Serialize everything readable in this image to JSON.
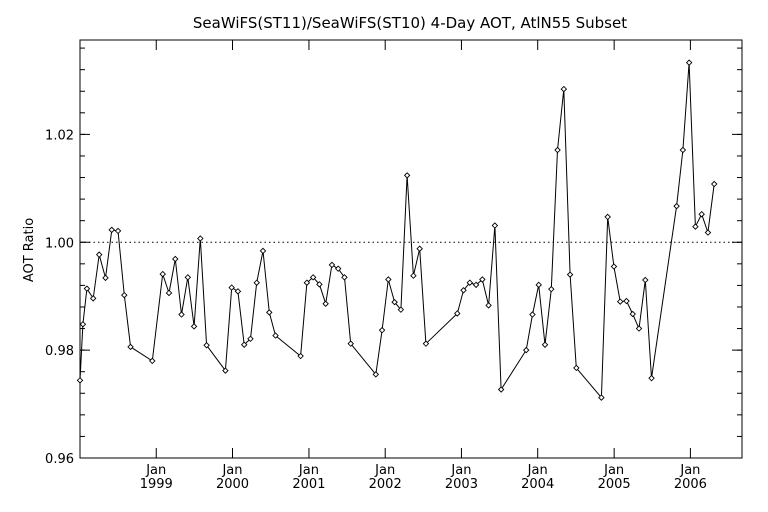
{
  "chart_data": {
    "type": "line",
    "title": "SeaWiFS(ST11)/SeaWiFS(ST10) 4-Day AOT, AtlN55 Subset",
    "ylabel": "AOT Ratio",
    "xlabel": "",
    "xlim": [
      "1998-01-01",
      "2006-09-05"
    ],
    "ylim": [
      0.96,
      1.0375
    ],
    "yticks": [
      0.96,
      0.98,
      1.0,
      1.02
    ],
    "ytick_labels": [
      "0.96",
      "0.98",
      "1.00",
      "1.02"
    ],
    "y_minor_step": 0.004,
    "reference_line": 1.0,
    "x_month_label": "Jan",
    "xticks": [
      {
        "date": "1999-01-01",
        "year": "1999"
      },
      {
        "date": "2000-01-01",
        "year": "2000"
      },
      {
        "date": "2001-01-01",
        "year": "2001"
      },
      {
        "date": "2002-01-01",
        "year": "2002"
      },
      {
        "date": "2003-01-01",
        "year": "2003"
      },
      {
        "date": "2004-01-01",
        "year": "2004"
      },
      {
        "date": "2005-01-01",
        "year": "2005"
      },
      {
        "date": "2006-01-01",
        "year": "2006"
      }
    ],
    "grid": false,
    "marker": "diamond",
    "points": [
      [
        "1998-01-01",
        0.9744
      ],
      [
        "1998-01-15",
        0.9848
      ],
      [
        "1998-02-03",
        0.9914
      ],
      [
        "1998-03-05",
        0.9896
      ],
      [
        "1998-04-03",
        0.9977
      ],
      [
        "1998-05-03",
        0.9934
      ],
      [
        "1998-06-02",
        1.0023
      ],
      [
        "1998-07-02",
        1.0021
      ],
      [
        "1998-08-01",
        0.9902
      ],
      [
        "1998-08-31",
        0.9806
      ],
      [
        "1998-12-13",
        0.978
      ],
      [
        "1999-02-01",
        0.9941
      ],
      [
        "1999-03-03",
        0.9906
      ],
      [
        "1999-04-02",
        0.9969
      ],
      [
        "1999-05-02",
        0.9866
      ],
      [
        "1999-06-01",
        0.9935
      ],
      [
        "1999-07-01",
        0.9844
      ],
      [
        "1999-07-31",
        1.0007
      ],
      [
        "1999-08-30",
        0.9809
      ],
      [
        "1999-11-28",
        0.9762
      ],
      [
        "1999-12-28",
        0.9916
      ],
      [
        "2000-01-27",
        0.9909
      ],
      [
        "2000-02-26",
        0.981
      ],
      [
        "2000-03-27",
        0.9821
      ],
      [
        "2000-04-26",
        0.9925
      ],
      [
        "2000-05-26",
        0.9984
      ],
      [
        "2000-06-25",
        0.987
      ],
      [
        "2000-07-25",
        0.9827
      ],
      [
        "2000-11-22",
        0.9789
      ],
      [
        "2000-12-22",
        0.9925
      ],
      [
        "2001-01-21",
        0.9935
      ],
      [
        "2001-02-20",
        0.9922
      ],
      [
        "2001-03-22",
        0.9886
      ],
      [
        "2001-04-21",
        0.9958
      ],
      [
        "2001-05-21",
        0.9951
      ],
      [
        "2001-06-20",
        0.9935
      ],
      [
        "2001-07-20",
        0.9812
      ],
      [
        "2001-11-17",
        0.9755
      ],
      [
        "2001-12-17",
        0.9837
      ],
      [
        "2002-01-16",
        0.9931
      ],
      [
        "2002-02-15",
        0.9889
      ],
      [
        "2002-03-17",
        0.9875
      ],
      [
        "2002-04-16",
        1.0124
      ],
      [
        "2002-05-16",
        0.9938
      ],
      [
        "2002-06-15",
        0.9988
      ],
      [
        "2002-07-15",
        0.9812
      ],
      [
        "2002-12-12",
        0.9868
      ],
      [
        "2003-01-11",
        0.9911
      ],
      [
        "2003-02-10",
        0.9925
      ],
      [
        "2003-03-12",
        0.9921
      ],
      [
        "2003-04-11",
        0.9931
      ],
      [
        "2003-05-11",
        0.9883
      ],
      [
        "2003-06-10",
        1.0031
      ],
      [
        "2003-07-10",
        0.9727
      ],
      [
        "2003-11-07",
        0.98
      ],
      [
        "2003-12-07",
        0.9866
      ],
      [
        "2004-01-06",
        0.9921
      ],
      [
        "2004-02-05",
        0.981
      ],
      [
        "2004-03-06",
        0.9913
      ],
      [
        "2004-04-05",
        1.0171
      ],
      [
        "2004-05-05",
        1.0284
      ],
      [
        "2004-06-04",
        0.994
      ],
      [
        "2004-07-04",
        0.9767
      ],
      [
        "2004-11-01",
        0.9712
      ],
      [
        "2004-12-01",
        1.0047
      ],
      [
        "2004-12-31",
        0.9955
      ],
      [
        "2005-01-30",
        0.989
      ],
      [
        "2005-03-01",
        0.9891
      ],
      [
        "2005-03-31",
        0.9867
      ],
      [
        "2005-04-30",
        0.984
      ],
      [
        "2005-05-30",
        0.993
      ],
      [
        "2005-06-29",
        0.9748
      ],
      [
        "2005-10-27",
        1.0067
      ],
      [
        "2005-11-26",
        1.0171
      ],
      [
        "2005-12-26",
        1.0333
      ],
      [
        "2006-01-25",
        1.0029
      ],
      [
        "2006-02-24",
        1.0052
      ],
      [
        "2006-03-26",
        1.0018
      ],
      [
        "2006-04-25",
        1.0108
      ]
    ]
  }
}
